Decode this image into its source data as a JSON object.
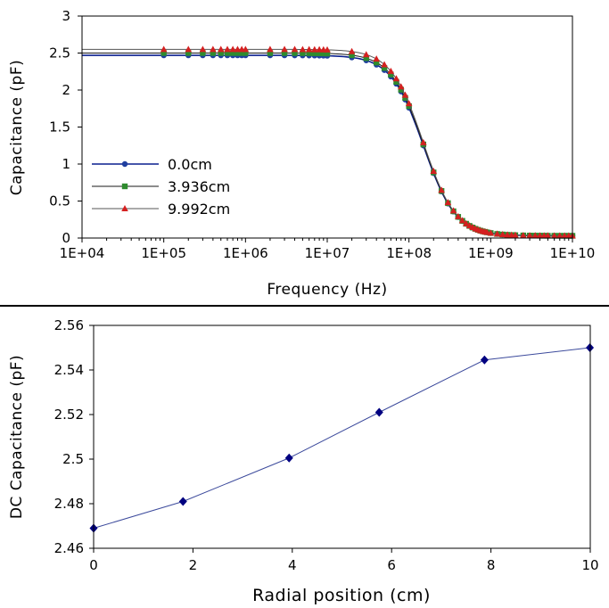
{
  "chart_data": [
    {
      "type": "line",
      "xscale": "log",
      "xlabel": "Frequency (Hz)",
      "ylabel": "Capacitance (pF)",
      "xlim": [
        10000,
        10000000000
      ],
      "ylim": [
        0,
        3
      ],
      "x_ticks": [
        "1E+04",
        "1E+05",
        "1E+06",
        "1E+07",
        "1E+08",
        "1E+09",
        "1E+10"
      ],
      "y_ticks": [
        "0",
        "0.5",
        "1",
        "1.5",
        "2",
        "2.5",
        "3"
      ],
      "legend_position": "left",
      "grid": false,
      "model": {
        "f_corner_hz": 150000000,
        "rolloff": 1.1,
        "floor_pf": 0.03
      },
      "series": [
        {
          "name": "0.0cm",
          "marker": "circle",
          "color": "#1f3f9f",
          "dc_pf": 2.469
        },
        {
          "name": "3.936cm",
          "marker": "square",
          "color": "#2e8b2e",
          "dc_pf": 2.5
        },
        {
          "name": "9.992cm",
          "marker": "triangle",
          "color": "#d42020",
          "dc_pf": 2.55
        }
      ],
      "sample_frequencies_hz": [
        100000,
        200000,
        300000,
        400000,
        500000,
        600000,
        700000,
        800000,
        900000,
        1000000,
        2000000,
        3000000,
        4000000,
        5000000,
        6000000,
        7000000,
        8000000,
        9000000,
        10000000,
        20000000,
        30000000,
        40000000,
        50000000,
        60000000,
        70000000,
        80000000,
        90000000,
        100000000,
        150000000,
        200000000,
        250000000,
        300000000,
        350000000,
        400000000,
        450000000,
        500000000,
        550000000,
        600000000,
        650000000,
        700000000,
        750000000,
        800000000,
        850000000,
        900000000,
        1000000000,
        1200000000,
        1400000000,
        1600000000,
        1800000000,
        2000000000,
        2500000000,
        3000000000,
        3500000000,
        4000000000,
        4500000000,
        5000000000,
        6000000000,
        7000000000,
        8000000000,
        9000000000,
        10000000000
      ]
    },
    {
      "type": "line",
      "xlabel": "Radial position (cm)",
      "ylabel": "DC Capacitance (pF)",
      "xlim": [
        0,
        10
      ],
      "ylim": [
        2.46,
        2.56
      ],
      "x_ticks": [
        "0",
        "2",
        "4",
        "6",
        "8",
        "10"
      ],
      "y_ticks": [
        "2.46",
        "2.48",
        "2.5",
        "2.52",
        "2.54",
        "2.56"
      ],
      "grid": false,
      "series": [
        {
          "marker": "diamond",
          "color": "#000080",
          "x": [
            0,
            1.8,
            3.936,
            5.75,
            7.87,
            9.992
          ],
          "y": [
            2.469,
            2.481,
            2.5005,
            2.521,
            2.5445,
            2.55
          ]
        }
      ]
    }
  ]
}
